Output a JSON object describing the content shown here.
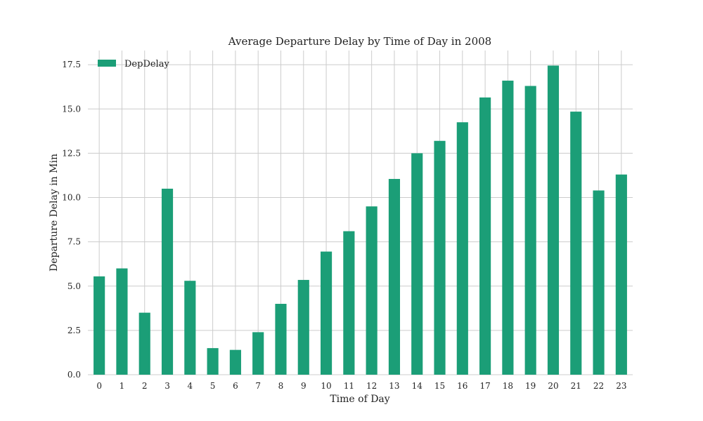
{
  "chart_data": {
    "type": "bar",
    "title": "Average Departure Delay by Time of Day in 2008",
    "xlabel": "Time of Day",
    "ylabel": "Departure Delay in Min",
    "categories": [
      "0",
      "1",
      "2",
      "3",
      "4",
      "5",
      "6",
      "7",
      "8",
      "9",
      "10",
      "11",
      "12",
      "13",
      "14",
      "15",
      "16",
      "17",
      "18",
      "19",
      "20",
      "21",
      "22",
      "23"
    ],
    "series": [
      {
        "name": "DepDelay",
        "values": [
          5.55,
          6.0,
          3.5,
          10.5,
          5.3,
          1.5,
          1.4,
          2.4,
          4.0,
          5.35,
          6.95,
          8.1,
          9.5,
          11.05,
          12.5,
          13.2,
          14.25,
          15.65,
          16.6,
          16.3,
          17.45,
          14.85,
          10.4,
          11.3
        ],
        "color": "#1b9e77"
      }
    ],
    "ylim": [
      0,
      18.3
    ],
    "yticks": [
      "0.0",
      "2.5",
      "5.0",
      "7.5",
      "10.0",
      "12.5",
      "15.0",
      "17.5"
    ],
    "grid": true,
    "legend_position": "top-left"
  }
}
